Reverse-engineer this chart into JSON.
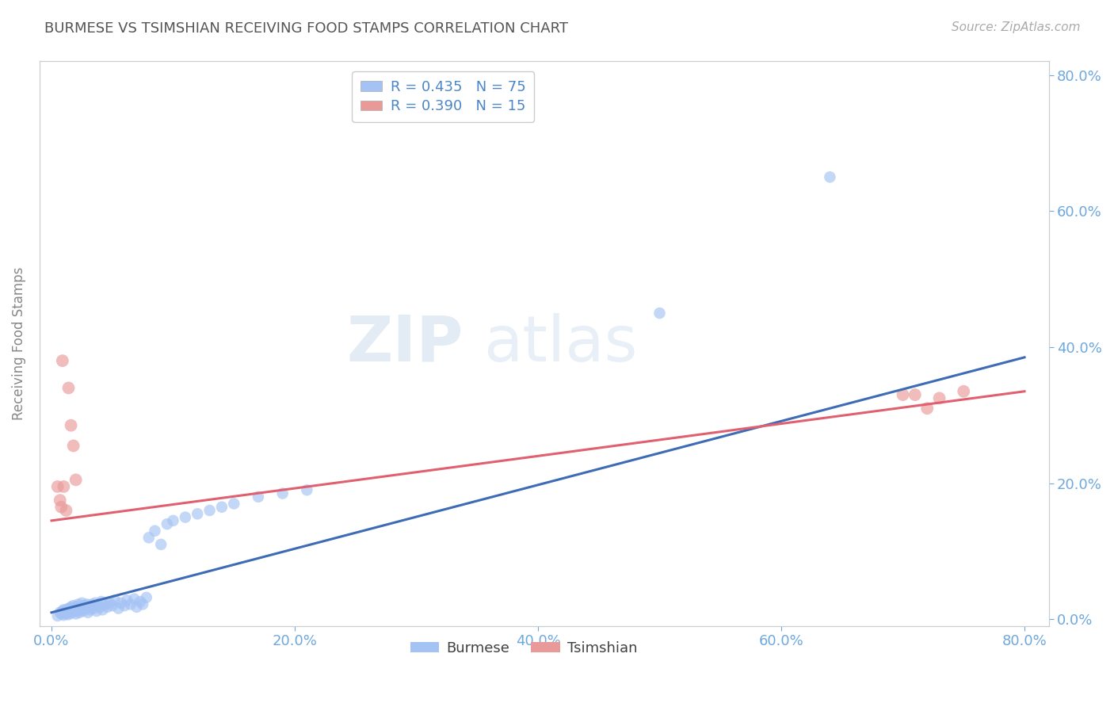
{
  "title": "BURMESE VS TSIMSHIAN RECEIVING FOOD STAMPS CORRELATION CHART",
  "source_text": "Source: ZipAtlas.com",
  "ylabel": "Receiving Food Stamps",
  "x_tick_labels": [
    "0.0%",
    "20.0%",
    "40.0%",
    "60.0%",
    "80.0%"
  ],
  "x_tick_vals": [
    0.0,
    0.2,
    0.4,
    0.6,
    0.8
  ],
  "y_tick_labels": [
    "0.0%",
    "20.0%",
    "40.0%",
    "60.0%",
    "80.0%"
  ],
  "y_tick_vals": [
    0.0,
    0.2,
    0.4,
    0.6,
    0.8
  ],
  "xlim": [
    -0.01,
    0.82
  ],
  "ylim": [
    -0.01,
    0.82
  ],
  "burmese_color": "#a4c2f4",
  "tsimshian_color": "#ea9999",
  "burmese_line_color": "#3d6bb5",
  "tsimshian_line_color": "#e06070",
  "burmese_R": 0.435,
  "burmese_N": 75,
  "tsimshian_R": 0.39,
  "tsimshian_N": 15,
  "legend_label_burmese": "Burmese",
  "legend_label_tsimshian": "Tsimshian",
  "watermark_zip": "ZIP",
  "watermark_atlas": "atlas",
  "background_color": "#ffffff",
  "grid_color": "#cccccc",
  "title_color": "#555555",
  "axis_label_color": "#888888",
  "tick_color": "#6fa8dc",
  "burmese_trend_x": [
    0.0,
    0.8
  ],
  "burmese_trend_y": [
    0.01,
    0.385
  ],
  "tsimshian_trend_x": [
    0.0,
    0.8
  ],
  "tsimshian_trend_y": [
    0.145,
    0.335
  ],
  "burmese_x": [
    0.005,
    0.007,
    0.008,
    0.009,
    0.01,
    0.01,
    0.011,
    0.012,
    0.012,
    0.013,
    0.014,
    0.014,
    0.015,
    0.015,
    0.016,
    0.016,
    0.017,
    0.017,
    0.018,
    0.018,
    0.019,
    0.02,
    0.02,
    0.021,
    0.022,
    0.022,
    0.023,
    0.024,
    0.025,
    0.025,
    0.026,
    0.027,
    0.028,
    0.029,
    0.03,
    0.031,
    0.032,
    0.033,
    0.035,
    0.036,
    0.037,
    0.038,
    0.04,
    0.041,
    0.042,
    0.044,
    0.046,
    0.048,
    0.05,
    0.052,
    0.055,
    0.057,
    0.06,
    0.062,
    0.065,
    0.068,
    0.07,
    0.073,
    0.075,
    0.078,
    0.08,
    0.085,
    0.09,
    0.095,
    0.1,
    0.11,
    0.12,
    0.13,
    0.14,
    0.15,
    0.17,
    0.19,
    0.21,
    0.5,
    0.64
  ],
  "burmese_y": [
    0.005,
    0.01,
    0.008,
    0.012,
    0.006,
    0.014,
    0.008,
    0.01,
    0.012,
    0.015,
    0.007,
    0.013,
    0.009,
    0.016,
    0.011,
    0.018,
    0.01,
    0.015,
    0.012,
    0.02,
    0.014,
    0.008,
    0.018,
    0.012,
    0.016,
    0.022,
    0.01,
    0.018,
    0.014,
    0.024,
    0.012,
    0.02,
    0.016,
    0.022,
    0.01,
    0.018,
    0.014,
    0.022,
    0.016,
    0.024,
    0.012,
    0.02,
    0.018,
    0.026,
    0.014,
    0.022,
    0.018,
    0.024,
    0.02,
    0.028,
    0.016,
    0.024,
    0.02,
    0.028,
    0.022,
    0.03,
    0.018,
    0.026,
    0.022,
    0.032,
    0.12,
    0.13,
    0.11,
    0.14,
    0.145,
    0.15,
    0.155,
    0.16,
    0.165,
    0.17,
    0.18,
    0.185,
    0.19,
    0.45,
    0.65
  ],
  "tsimshian_x": [
    0.005,
    0.007,
    0.008,
    0.009,
    0.01,
    0.012,
    0.014,
    0.016,
    0.018,
    0.02,
    0.7,
    0.71,
    0.72,
    0.73,
    0.75
  ],
  "tsimshian_y": [
    0.195,
    0.175,
    0.165,
    0.38,
    0.195,
    0.16,
    0.34,
    0.285,
    0.255,
    0.205,
    0.33,
    0.33,
    0.31,
    0.325,
    0.335
  ]
}
